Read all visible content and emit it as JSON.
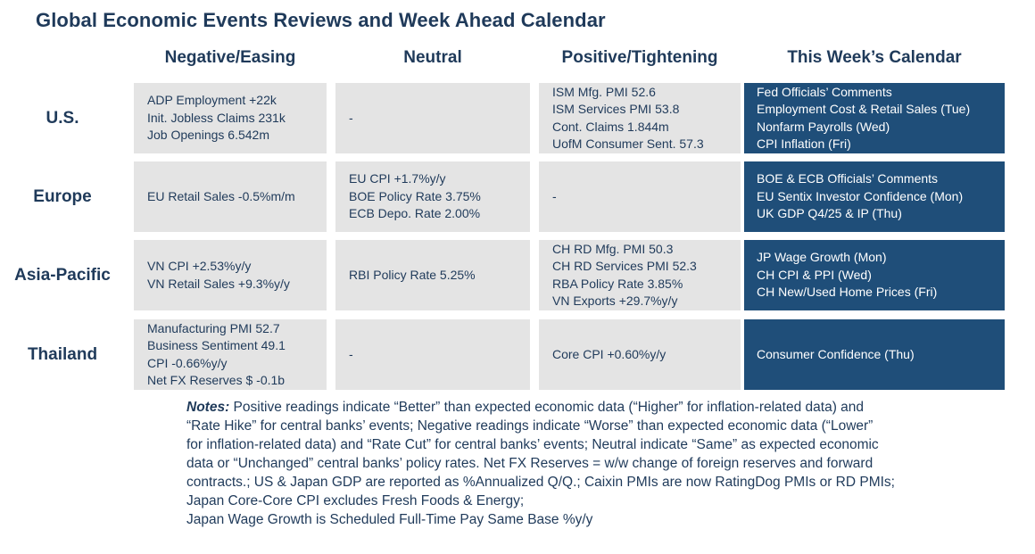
{
  "title": "Global Economic Events Reviews and Week Ahead Calendar",
  "columns": [
    "Negative/Easing",
    "Neutral",
    "Positive/Tightening",
    "This Week’s Calendar"
  ],
  "rows": [
    {
      "region": "U.S.",
      "negative": [
        "ADP Employment +22k",
        "Init. Jobless Claims 231k",
        "Job Openings 6.542m"
      ],
      "neutral": [
        "-"
      ],
      "positive": [
        "ISM Mfg. PMI 52.6",
        "ISM Services PMI 53.8",
        "Cont. Claims 1.844m",
        "UofM Consumer Sent. 57.3"
      ],
      "calendar": [
        "Fed Officials’ Comments",
        "Employment Cost & Retail Sales (Tue)",
        "Nonfarm Payrolls (Wed)",
        "CPI Inflation (Fri)"
      ]
    },
    {
      "region": "Europe",
      "negative": [
        "EU Retail Sales -0.5%m/m"
      ],
      "neutral": [
        "EU CPI +1.7%y/y",
        "BOE Policy Rate 3.75%",
        "ECB Depo. Rate 2.00%"
      ],
      "positive": [
        "-"
      ],
      "calendar": [
        "BOE & ECB Officials’ Comments",
        "EU Sentix Investor Confidence (Mon)",
        "UK GDP Q4/25 & IP (Thu)"
      ]
    },
    {
      "region": "Asia-Pacific",
      "negative": [
        "VN CPI +2.53%y/y",
        "VN Retail Sales +9.3%y/y"
      ],
      "neutral": [
        "RBI Policy Rate 5.25%"
      ],
      "positive": [
        "CH RD Mfg. PMI 50.3",
        "CH RD Services PMI 52.3",
        "RBA Policy Rate 3.85%",
        "VN Exports +29.7%y/y"
      ],
      "calendar": [
        "JP Wage Growth (Mon)",
        "CH CPI & PPI (Wed)",
        "CH New/Used Home Prices (Fri)"
      ]
    },
    {
      "region": "Thailand",
      "negative": [
        "Manufacturing PMI 52.7",
        "Business Sentiment 49.1",
        "CPI -0.66%y/y",
        "Net FX Reserves $ -0.1b"
      ],
      "neutral": [
        "-"
      ],
      "positive": [
        "Core CPI +0.60%y/y"
      ],
      "calendar": [
        "Consumer Confidence (Thu)"
      ]
    }
  ],
  "notes": {
    "label": "Notes:",
    "lines": [
      " Positive readings indicate “Better” than expected economic data (“Higher” for inflation-related data) and",
      "“Rate Hike” for central banks’ events; Negative readings indicate “Worse” than expected economic data (“Lower”",
      "for inflation-related data) and “Rate Cut” for central banks’ events; Neutral indicate “Same” as expected economic",
      "data or “Unchanged” central banks’ policy rates. Net FX Reserves = w/w change of foreign reserves and forward",
      "contracts.; US & Japan GDP are reported as %Annualized Q/Q.; Caixin PMIs are now RatingDog PMIs or RD PMIs;",
      "Japan Core-Core CPI excludes Fresh Foods & Energy;",
      "Japan Wage Growth is Scheduled Full-Time Pay Same Base %y/y"
    ]
  },
  "colors": {
    "title_text": "#1f3a5a",
    "cell_background": "#e4e4e4",
    "calendar_background": "#1f4e79",
    "calendar_text": "#ffffff"
  }
}
